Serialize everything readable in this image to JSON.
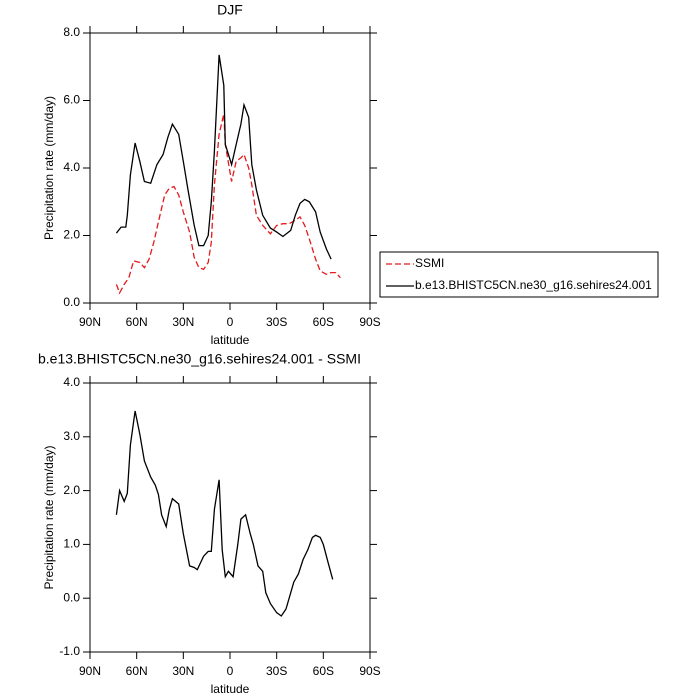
{
  "chart_data": [
    {
      "type": "line",
      "title": "DJF",
      "xlabel": "latitude",
      "ylabel": "Precipitation rate (mm/day)",
      "xlim": [
        90,
        -90
      ],
      "xticks": [
        {
          "value": 90,
          "label": "90N"
        },
        {
          "value": 60,
          "label": "60N"
        },
        {
          "value": 30,
          "label": "30N"
        },
        0,
        {
          "value": -30,
          "label": "30S"
        },
        {
          "value": -60,
          "label": "60S"
        },
        {
          "value": -90,
          "label": "90S"
        }
      ],
      "ylim": [
        0,
        8
      ],
      "yticks": [
        {
          "value": 0,
          "label": "0.0"
        },
        {
          "value": 2,
          "label": "2.0"
        },
        {
          "value": 4,
          "label": "4.0"
        },
        {
          "value": 6,
          "label": "6.0"
        },
        {
          "value": 8,
          "label": "8.0"
        }
      ],
      "legend": "right",
      "series": [
        {
          "name": "SSMI",
          "color": "#e41a1c",
          "style": "dashed",
          "x": [
            73,
            71,
            68,
            65,
            62,
            58,
            55,
            52,
            49,
            46,
            42,
            39,
            36,
            33,
            30,
            26,
            23,
            20,
            17,
            14,
            12,
            10,
            7,
            4,
            3,
            -1,
            -4,
            -7,
            -9,
            -12,
            -14,
            -17,
            -21,
            -26,
            -30,
            -34,
            -38,
            -42,
            -45,
            -48,
            -51,
            -55,
            -58,
            -62,
            -65,
            -68,
            -71
          ],
          "values": [
            0.55,
            0.3,
            0.55,
            0.75,
            1.25,
            1.2,
            1.05,
            1.3,
            1.8,
            2.4,
            3.2,
            3.4,
            3.45,
            3.2,
            2.7,
            2.1,
            1.35,
            1.05,
            1.0,
            1.2,
            1.8,
            3.5,
            5.0,
            5.6,
            4.7,
            3.6,
            4.2,
            4.3,
            4.4,
            4.0,
            3.5,
            2.6,
            2.3,
            2.05,
            2.3,
            2.35,
            2.35,
            2.45,
            2.55,
            2.3,
            1.9,
            1.3,
            0.95,
            0.85,
            0.9,
            0.9,
            0.75
          ]
        },
        {
          "name": "b.e13.BHISTC5CN.ne30_g16.sehires24.001",
          "color": "#000000",
          "style": "solid",
          "x": [
            73,
            70,
            67,
            66,
            64,
            61,
            58,
            55,
            51,
            47,
            43,
            40,
            37,
            33,
            30,
            27,
            23,
            20,
            17,
            14,
            12,
            10,
            7,
            4,
            3,
            -1,
            -4,
            -7,
            -9,
            -12,
            -14,
            -17,
            -21,
            -26,
            -30,
            -34,
            -39,
            -42,
            -45,
            -48,
            -51,
            -55,
            -58,
            -62,
            -65
          ],
          "values": [
            2.07,
            2.25,
            2.25,
            2.6,
            3.8,
            4.74,
            4.2,
            3.6,
            3.55,
            4.1,
            4.4,
            4.9,
            5.3,
            5.0,
            4.2,
            3.35,
            2.3,
            1.7,
            1.7,
            2.0,
            3.0,
            4.5,
            7.35,
            6.45,
            4.7,
            4.1,
            4.7,
            5.3,
            5.87,
            5.5,
            4.1,
            3.35,
            2.6,
            2.22,
            2.1,
            1.97,
            2.15,
            2.6,
            2.95,
            3.07,
            3.0,
            2.7,
            2.1,
            1.6,
            1.3
          ]
        }
      ]
    },
    {
      "type": "line",
      "title": "b.e13.BHISTC5CN.ne30_g16.sehires24.001 - SSMI",
      "xlabel": "latitude",
      "ylabel": "Precipitation rate (mm/day)",
      "xlim": [
        90,
        -90
      ],
      "xticks": [
        {
          "value": 90,
          "label": "90N"
        },
        {
          "value": 60,
          "label": "60N"
        },
        {
          "value": 30,
          "label": "30N"
        },
        0,
        {
          "value": -30,
          "label": "30S"
        },
        {
          "value": -60,
          "label": "60S"
        },
        {
          "value": -90,
          "label": "90S"
        }
      ],
      "ylim": [
        -1,
        4
      ],
      "yticks": [
        {
          "value": -1,
          "label": "-1.0"
        },
        {
          "value": 0,
          "label": "0.0"
        },
        {
          "value": 1,
          "label": "1.0"
        },
        {
          "value": 2,
          "label": "2.0"
        },
        {
          "value": 3,
          "label": "3.0"
        },
        {
          "value": 4,
          "label": "4.0"
        }
      ],
      "series": [
        {
          "color": "#000000",
          "style": "solid",
          "x": [
            73,
            71,
            68,
            66,
            64,
            61,
            58,
            55,
            51,
            48,
            46,
            44,
            41,
            39,
            37,
            33,
            30,
            26,
            23,
            21,
            17,
            14,
            12,
            10,
            7,
            5,
            3,
            1,
            -2,
            -5,
            -7,
            -10,
            -13,
            -15,
            -18,
            -21,
            -23,
            -26,
            -30,
            -33,
            -36,
            -39,
            -41,
            -44,
            -47,
            -50,
            -53,
            -55,
            -58,
            -60,
            -63,
            -66
          ],
          "values": [
            1.55,
            2.0,
            1.8,
            1.95,
            2.85,
            3.48,
            3.05,
            2.55,
            2.25,
            2.1,
            1.93,
            1.55,
            1.33,
            1.65,
            1.85,
            1.75,
            1.2,
            0.6,
            0.57,
            0.53,
            0.78,
            0.87,
            0.87,
            1.65,
            2.2,
            0.9,
            0.4,
            0.5,
            0.4,
            1.0,
            1.47,
            1.55,
            1.2,
            1.0,
            0.6,
            0.5,
            0.1,
            -0.1,
            -0.27,
            -0.33,
            -0.2,
            0.1,
            0.3,
            0.45,
            0.72,
            0.9,
            1.13,
            1.17,
            1.13,
            1.0,
            0.67,
            0.35
          ]
        }
      ]
    }
  ]
}
